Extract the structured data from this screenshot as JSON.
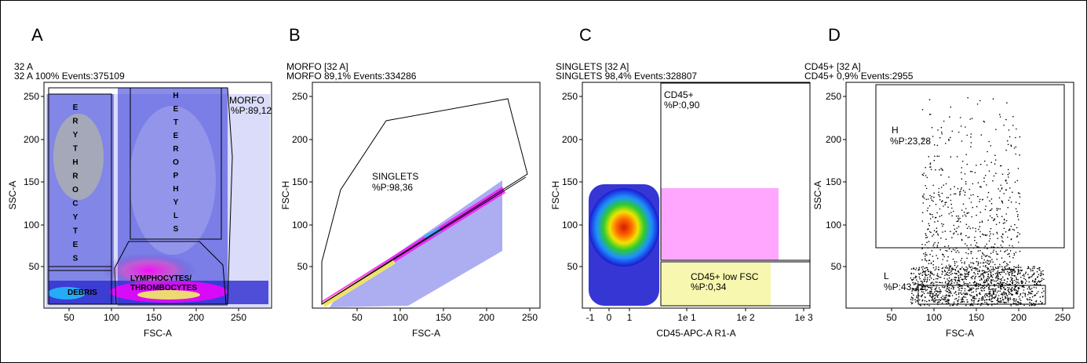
{
  "panels": [
    {
      "letter": "A",
      "header1": "32 A",
      "header2": "32 A  100% Events:375109",
      "xlabel": "FSC-A",
      "ylabel": "SSC-A",
      "xticks": [
        "50",
        "100",
        "150",
        "200",
        "250"
      ],
      "yticks": [
        "50",
        "100",
        "150",
        "200",
        "250"
      ]
    },
    {
      "letter": "B",
      "header1": "MORFO [32 A]",
      "header2": "MORFO  89,1% Events:334286",
      "xlabel": "FSC-A",
      "ylabel": "FSC-H",
      "xticks": [
        "50",
        "100",
        "150",
        "200",
        "250"
      ],
      "yticks": [
        "50",
        "100",
        "150",
        "200",
        "250"
      ]
    },
    {
      "letter": "C",
      "header1": "SINGLETS [32 A]",
      "header2": "SINGLETS  98,4% Events:328807",
      "xlabel": "CD45-APC-A R1-A",
      "ylabel": "FSC-H",
      "xticks": [
        "-1",
        "0",
        "1",
        "1e 1",
        "1e 2",
        "1e 3"
      ],
      "yticks": [
        "50",
        "100",
        "150",
        "200",
        "250"
      ]
    },
    {
      "letter": "D",
      "header1": "CD45+ [32 A]",
      "header2": "CD45+  0,9% Events:2955",
      "xlabel": "FSC-A",
      "ylabel": "SSC-A",
      "xticks": [
        "50",
        "100",
        "150",
        "200",
        "250"
      ],
      "yticks": [
        "50",
        "100",
        "150",
        "200",
        "250"
      ]
    }
  ],
  "gates": {
    "erythrocytes": "ERYTHROCYTES",
    "heterophyls": "HETEROPHYLS",
    "morfo_name": "MORFO",
    "morfo_pct": "%P:89,12",
    "debris": "DEBRIS",
    "lympho_1": "LYMPHOCYTES/",
    "lympho_2": "THROMBOCYTES",
    "singlets_name": "SINGLETS",
    "singlets_pct": "%P:98,36",
    "cd45_name": "CD45+",
    "cd45_pct": "%P:0,90",
    "cd45low_name": "CD45+ low FSC",
    "cd45low_pct": "%P:0,34",
    "h_name": "H",
    "h_pct": "%P:23,28",
    "l_name": "L",
    "l_pct": "%P:43,72"
  },
  "chart_data": [
    {
      "type": "scatter",
      "panel": "A",
      "xlabel": "FSC-A",
      "ylabel": "SSC-A",
      "xlim": [
        0,
        270
      ],
      "ylim": [
        0,
        265
      ],
      "events": 375109,
      "colors": {
        "low": "#3a3adf",
        "mid": "#f0f060",
        "high": "#ff00ff"
      },
      "gates": [
        {
          "name": "MORFO",
          "percent": "89,12"
        },
        {
          "name": "ERYTHROCYTES"
        },
        {
          "name": "HETEROPHYLS"
        },
        {
          "name": "DEBRIS"
        },
        {
          "name": "LYMPHOCYTES/ THROMBOCYTES"
        }
      ]
    },
    {
      "type": "scatter",
      "panel": "B",
      "xlabel": "FSC-A",
      "ylabel": "FSC-H",
      "xlim": [
        0,
        260
      ],
      "ylim": [
        0,
        265
      ],
      "events": 334286,
      "gates": [
        {
          "name": "SINGLETS",
          "percent": "98,36"
        }
      ]
    },
    {
      "type": "scatter",
      "panel": "C",
      "xlabel": "CD45-APC-A R1-A",
      "ylabel": "FSC-H",
      "ylim": [
        0,
        265
      ],
      "events": 328807,
      "gates": [
        {
          "name": "CD45+",
          "percent": "0,90"
        },
        {
          "name": "CD45+ low FSC",
          "percent": "0,34"
        }
      ]
    },
    {
      "type": "scatter",
      "panel": "D",
      "xlabel": "FSC-A",
      "ylabel": "SSC-A",
      "xlim": [
        0,
        260
      ],
      "ylim": [
        0,
        265
      ],
      "events": 2955,
      "gates": [
        {
          "name": "H",
          "percent": "23,28"
        },
        {
          "name": "L",
          "percent": "43,72"
        }
      ]
    }
  ]
}
